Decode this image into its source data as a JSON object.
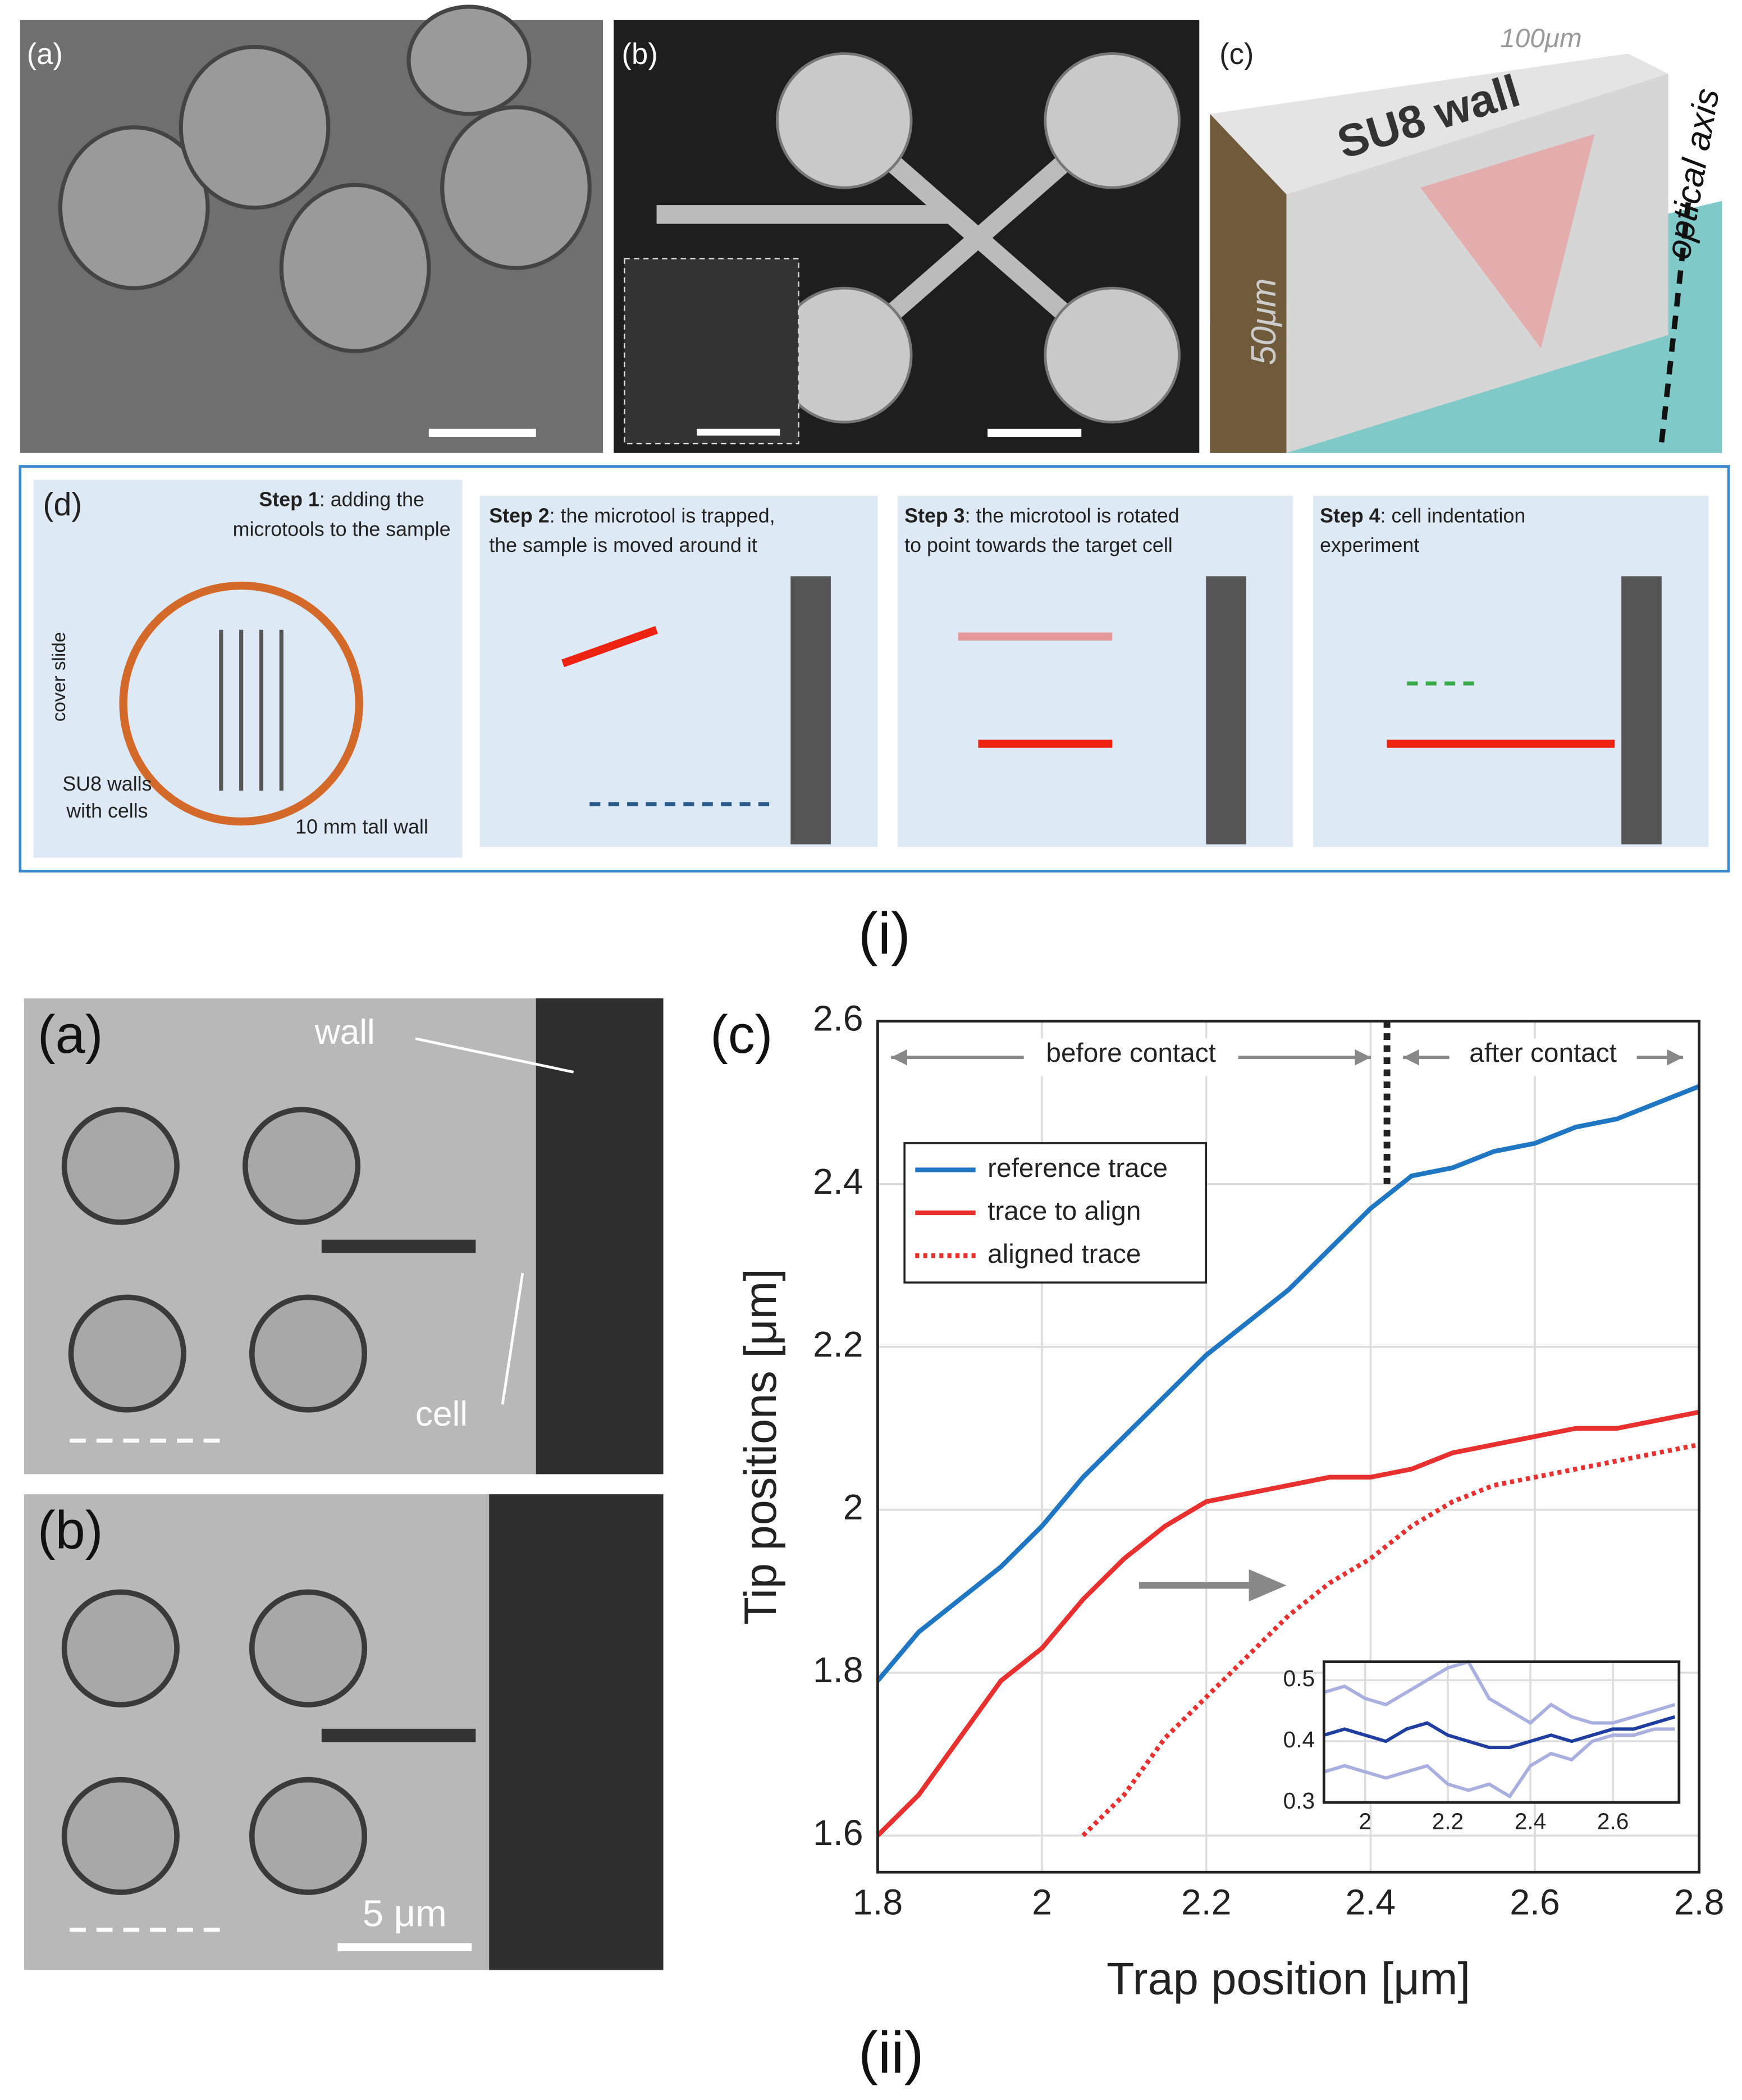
{
  "figure_i": {
    "label": "(i)",
    "panel_a": {
      "label": "(a)"
    },
    "panel_b": {
      "label": "(b)"
    },
    "panel_c": {
      "label": "(c)",
      "top": "100μm",
      "wall": "SU8 wall",
      "axis": "optical axis",
      "height": "50μm"
    },
    "panel_d": {
      "label": "(d)",
      "cover": "cover slide",
      "walls": [
        "SU8 walls",
        "with cells"
      ],
      "tall": "10 mm tall wall",
      "steps": [
        {
          "title": "Step 1",
          "lines": [
            ": adding the",
            "microtools to the sample"
          ]
        },
        {
          "title": "Step 2",
          "lines": [
            ": the microtool is trapped,",
            "the sample is moved around it"
          ]
        },
        {
          "title": "Step 3",
          "lines": [
            ": the microtool is rotated",
            "to point towards the target cell"
          ]
        },
        {
          "title": "Step 4",
          "lines": [
            ": cell indentation",
            "experiment"
          ]
        }
      ]
    }
  },
  "figure_ii": {
    "label": "(ii)",
    "panel_a": {
      "label": "(a)",
      "wall": "wall",
      "cell": "cell"
    },
    "panel_b": {
      "label": "(b)",
      "scale": "5 μm"
    },
    "panel_c": {
      "label": "(c)"
    }
  },
  "chart_data": [
    {
      "type": "line",
      "xlabel": "Trap position [μm]",
      "ylabel": "Tip positions [μm]",
      "x": [
        1.8,
        1.85,
        1.9,
        1.95,
        2.0,
        2.05,
        2.1,
        2.15,
        2.2,
        2.25,
        2.3,
        2.35,
        2.4,
        2.45,
        2.5,
        2.55,
        2.6,
        2.65,
        2.7,
        2.75,
        2.8
      ],
      "series": [
        {
          "name": "reference trace",
          "color": "#1f77c4",
          "style": "solid",
          "values": [
            1.79,
            1.85,
            1.89,
            1.93,
            1.98,
            2.04,
            2.09,
            2.14,
            2.19,
            2.23,
            2.27,
            2.32,
            2.37,
            2.41,
            2.42,
            2.44,
            2.45,
            2.47,
            2.48,
            2.5,
            2.52
          ]
        },
        {
          "name": "trace to align",
          "color": "#e8312f",
          "style": "solid",
          "values": [
            1.6,
            1.65,
            1.72,
            1.79,
            1.83,
            1.89,
            1.94,
            1.98,
            2.01,
            2.02,
            2.03,
            2.04,
            2.04,
            2.05,
            2.07,
            2.08,
            2.09,
            2.1,
            2.1,
            2.11,
            2.12
          ]
        },
        {
          "name": "aligned trace",
          "color": "#e8312f",
          "style": "dotted",
          "values": [
            null,
            null,
            null,
            null,
            null,
            1.6,
            1.65,
            1.72,
            1.77,
            1.82,
            1.87,
            1.91,
            1.94,
            1.98,
            2.01,
            2.03,
            2.04,
            2.05,
            2.06,
            2.07,
            2.08
          ]
        }
      ],
      "xlim": [
        1.8,
        2.8
      ],
      "ylim": [
        1.555,
        2.6
      ],
      "xticks": [
        1.8,
        2,
        2.2,
        2.4,
        2.6,
        2.8
      ],
      "yticks": [
        1.6,
        1.8,
        2,
        2.2,
        2.4,
        2.6
      ],
      "grid": true,
      "legend": "upper left",
      "contact_position": 2.42,
      "annotations": [
        "before contact",
        "after contact"
      ]
    },
    {
      "type": "line",
      "x": [
        1.9,
        1.95,
        2.0,
        2.05,
        2.1,
        2.15,
        2.2,
        2.25,
        2.3,
        2.35,
        2.4,
        2.45,
        2.5,
        2.55,
        2.6,
        2.65,
        2.7,
        2.75
      ],
      "series": [
        {
          "color": "#a9b0e0",
          "style": "solid",
          "values": [
            0.48,
            0.49,
            0.47,
            0.46,
            0.48,
            0.5,
            0.52,
            0.53,
            0.47,
            0.45,
            0.43,
            0.46,
            0.44,
            0.43,
            0.43,
            0.44,
            0.45,
            0.46
          ]
        },
        {
          "color": "#a9b0e0",
          "style": "solid",
          "values": [
            0.35,
            0.36,
            0.35,
            0.34,
            0.35,
            0.36,
            0.33,
            0.32,
            0.33,
            0.31,
            0.36,
            0.38,
            0.37,
            0.4,
            0.41,
            0.41,
            0.42,
            0.42
          ]
        },
        {
          "color": "#1f3ea0",
          "style": "solid",
          "values": [
            0.41,
            0.42,
            0.41,
            0.4,
            0.42,
            0.43,
            0.41,
            0.4,
            0.39,
            0.39,
            0.4,
            0.41,
            0.4,
            0.41,
            0.42,
            0.42,
            0.43,
            0.44
          ]
        }
      ],
      "xlim": [
        1.9,
        2.76
      ],
      "ylim": [
        0.3,
        0.53
      ],
      "xticks": [
        2,
        2.2,
        2.4,
        2.6
      ],
      "yticks": [
        0.3,
        0.4,
        0.5
      ],
      "grid": true
    }
  ]
}
